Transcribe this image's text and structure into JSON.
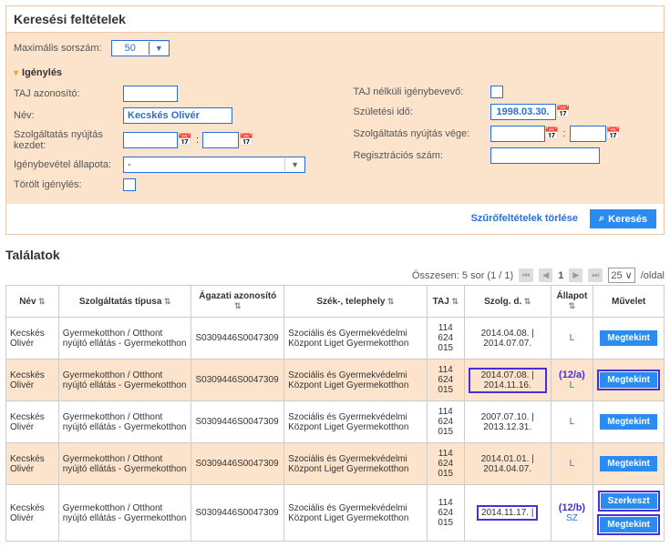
{
  "search": {
    "title": "Keresési feltételek",
    "maxRowsLabel": "Maximális sorszám:",
    "maxRowsValue": "50",
    "sectionTitle": "Igénylés",
    "left": {
      "tajLabel": "TAJ azonosító:",
      "nameLabel": "Név:",
      "nameValue": "Kecskés Olivér",
      "serviceStartLabel": "Szolgáltatás nyújtás kezdet:",
      "statusLabel": "Igénybevétel állapota:",
      "statusValue": "-",
      "deletedLabel": "Törölt igénylés:"
    },
    "right": {
      "tajlessLabel": "TAJ nélküli igénybevevő:",
      "birthLabel": "Születési idő:",
      "birthValue": "1998.03.30.",
      "serviceEndLabel": "Szolgáltatás nyújtás vége:",
      "regLabel": "Regisztrációs szám:"
    },
    "clearFilters": "Szűrőfeltételek törlése",
    "searchBtn": "Keresés"
  },
  "results": {
    "title": "Találatok",
    "summary": "Összesen: 5 sor (1 / 1)",
    "pageNum": "1",
    "perPage": "25",
    "perPageSuffix": "/oldal",
    "headers": {
      "nev": "Név",
      "tipus": "Szolgáltatás típusa",
      "agazati": "Ágazati azonosító",
      "szek": "Szék-, telephely",
      "taj": "TAJ",
      "szolgd": "Szolg. d.",
      "allapot": "Állapot",
      "muvelet": "Művelet"
    },
    "rows": [
      {
        "nev": "Kecskés Olivér",
        "tipus": "Gyermekotthon / Otthont nyújtó ellátás - Gyermekotthon",
        "agazati": "S0309446S0047309",
        "szek": "Szociális és Gyermekvédelmi Központ Liget Gyermekotthon",
        "taj": "114 624 015",
        "szolgd": "2014.04.08. | 2014.07.07.",
        "allapot": "L",
        "ops": [
          "Megtekint"
        ],
        "hl": false
      },
      {
        "nev": "Kecskés Olivér",
        "tipus": "Gyermekotthon / Otthont nyújtó ellátás - Gyermekotthon",
        "agazati": "S0309446S0047309",
        "szek": "Szociális és Gyermekvédelmi Központ Liget Gyermekotthon",
        "taj": "114 624 015",
        "szolgd": "2014.07.08. | 2014.11.16.",
        "allapot": "L",
        "ops": [
          "Megtekint"
        ],
        "hl": true,
        "annot": "(12/a)"
      },
      {
        "nev": "Kecskés Olivér",
        "tipus": "Gyermekotthon / Otthont nyújtó ellátás - Gyermekotthon",
        "agazati": "S0309446S0047309",
        "szek": "Szociális és Gyermekvédelmi Központ Liget Gyermekotthon",
        "taj": "114 624 015",
        "szolgd": "2007.07.10. | 2013.12.31.",
        "allapot": "L",
        "ops": [
          "Megtekint"
        ],
        "hl": false
      },
      {
        "nev": "Kecskés Olivér",
        "tipus": "Gyermekotthon / Otthont nyújtó ellátás - Gyermekotthon",
        "agazati": "S0309446S0047309",
        "szek": "Szociális és Gyermekvédelmi Központ Liget Gyermekotthon",
        "taj": "114 624 015",
        "szolgd": "2014.01.01. | 2014.04.07.",
        "allapot": "L",
        "ops": [
          "Megtekint"
        ],
        "hl": false
      },
      {
        "nev": "Kecskés Olivér",
        "tipus": "Gyermekotthon / Otthont nyújtó ellátás - Gyermekotthon",
        "agazati": "S0309446S0047309",
        "szek": "Szociális és Gyermekvédelmi Központ Liget Gyermekotthon",
        "taj": "114 624 015",
        "szolgd": "2014.11.17. |",
        "allapot": "SZ",
        "ops": [
          "Szerkeszt",
          "Megtekint"
        ],
        "hl": true,
        "annot": "(12/b)"
      }
    ]
  }
}
